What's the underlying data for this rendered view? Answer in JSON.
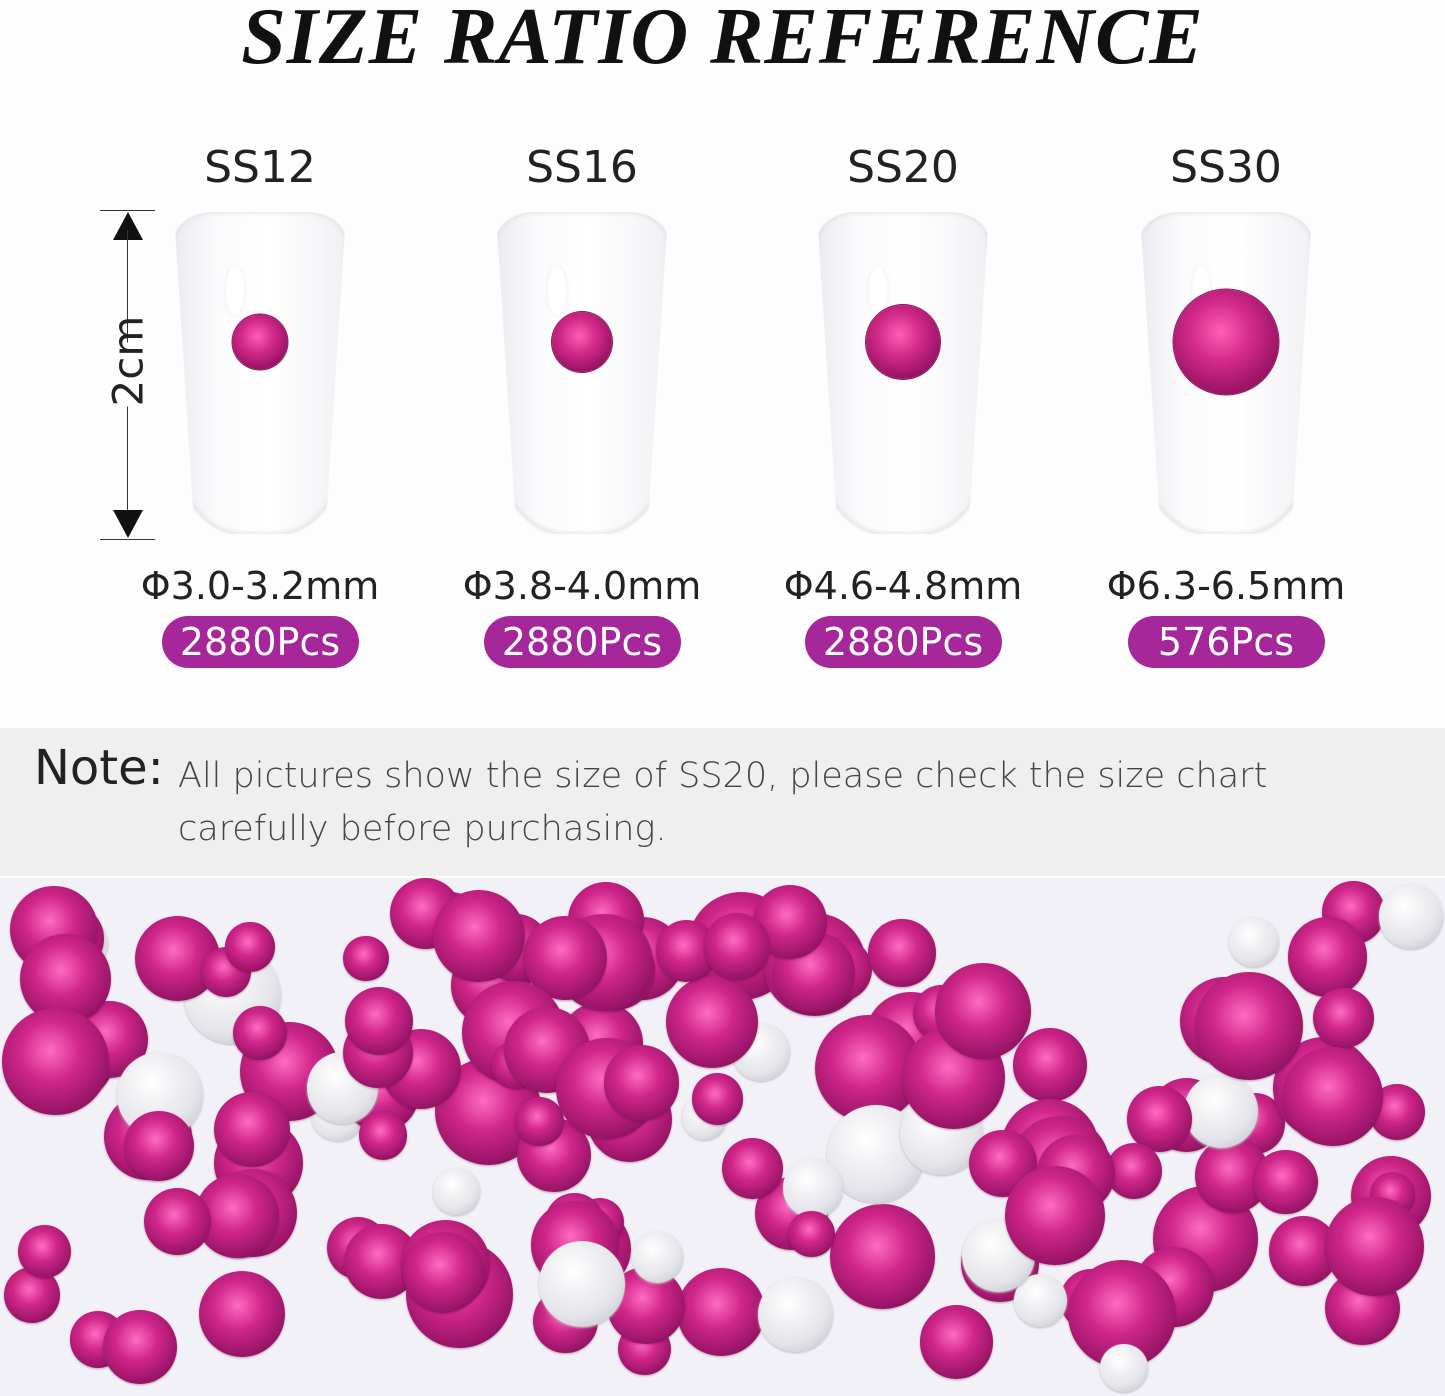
{
  "title": "SIZE RATIO REFERENCE",
  "dimension_label": "2cm",
  "sizes": [
    {
      "name": "SS12",
      "diameter": "Φ3.0-3.2mm",
      "count": "2880Pcs"
    },
    {
      "name": "SS16",
      "diameter": "Φ3.8-4.0mm",
      "count": "2880Pcs"
    },
    {
      "name": "SS20",
      "diameter": "Φ4.6-4.8mm",
      "count": "2880Pcs"
    },
    {
      "name": "SS30",
      "diameter": "Φ6.3-6.5mm",
      "count": "576Pcs"
    }
  ],
  "note": {
    "label": "Note:",
    "text": "All pictures show the size of SS20, please check the size chart carefully before purchasing."
  },
  "colors": {
    "accent": "#a5279a",
    "gem": "#c81f7f",
    "note_bg": "#efefef"
  }
}
